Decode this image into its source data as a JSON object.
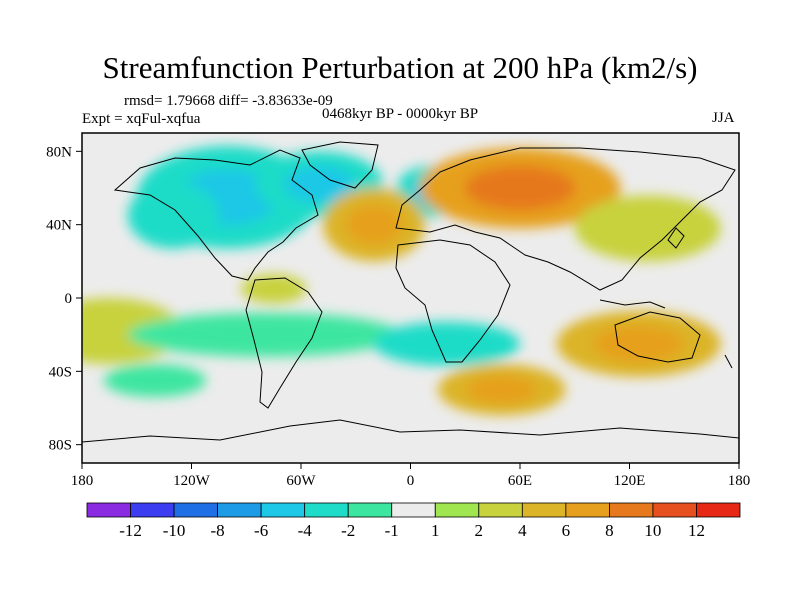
{
  "title": "Streamfunction Perturbation at 200 hPa (km2/s)",
  "stats": "rmsd= 1.79668 diff= -3.83633e-09",
  "experiment": "Expt = xqFul-xqfua",
  "period": "0468kyr BP - 0000kyr BP",
  "season": "JJA",
  "map": {
    "lon_ticks": [
      {
        "lon": -180,
        "label": "180"
      },
      {
        "lon": -120,
        "label": "120W"
      },
      {
        "lon": -60,
        "label": "60W"
      },
      {
        "lon": 0,
        "label": "0"
      },
      {
        "lon": 60,
        "label": "60E"
      },
      {
        "lon": 120,
        "label": "120E"
      },
      {
        "lon": 180,
        "label": "180"
      }
    ],
    "lat_ticks": [
      {
        "lat": 80,
        "label": "80N"
      },
      {
        "lat": 40,
        "label": "40N"
      },
      {
        "lat": 0,
        "label": "0"
      },
      {
        "lat": -40,
        "label": "40S"
      },
      {
        "lat": -80,
        "label": "80S"
      }
    ],
    "anomalies": [
      {
        "lon": -100,
        "lat": 55,
        "rlon": 50,
        "rlat": 28,
        "value": -3.5
      },
      {
        "lon": -130,
        "lat": 45,
        "rlon": 25,
        "rlat": 18,
        "value": -2.5
      },
      {
        "lon": -50,
        "lat": 62,
        "rlon": 35,
        "rlat": 18,
        "value": -3
      },
      {
        "lon": 10,
        "lat": 58,
        "rlon": 18,
        "rlat": 14,
        "value": -4
      },
      {
        "lon": -20,
        "lat": 40,
        "rlon": 28,
        "rlat": 20,
        "value": 4
      },
      {
        "lon": 60,
        "lat": 60,
        "rlon": 55,
        "rlat": 22,
        "value": 6
      },
      {
        "lon": 130,
        "lat": 38,
        "rlon": 40,
        "rlat": 18,
        "value": 2
      },
      {
        "lon": -75,
        "lat": 5,
        "rlon": 18,
        "rlat": 8,
        "value": 2.5
      },
      {
        "lon": -165,
        "lat": -18,
        "rlon": 40,
        "rlat": 18,
        "value": 2.5
      },
      {
        "lon": -80,
        "lat": -20,
        "rlon": 75,
        "rlat": 12,
        "value": -1.5
      },
      {
        "lon": 20,
        "lat": -25,
        "rlon": 40,
        "rlat": 12,
        "value": -2.5
      },
      {
        "lon": 50,
        "lat": -50,
        "rlon": 35,
        "rlat": 14,
        "value": 4
      },
      {
        "lon": 125,
        "lat": -25,
        "rlon": 45,
        "rlat": 18,
        "value": 4
      },
      {
        "lon": -140,
        "lat": -45,
        "rlon": 28,
        "rlat": 9,
        "value": -1.5
      }
    ]
  },
  "colorbar": {
    "colors": [
      "#8a2be2",
      "#3c3cf0",
      "#1e6ee6",
      "#1e9be6",
      "#1ec8e6",
      "#1edcc8",
      "#3ce6a0",
      "#ececec",
      "#a0e650",
      "#c8d23c",
      "#dcb428",
      "#e6a01e",
      "#e6781e",
      "#e6501e",
      "#e62814"
    ],
    "labels": [
      "-12",
      "-10",
      "-8",
      "-6",
      "-4",
      "-2",
      "-1",
      "1",
      "2",
      "4",
      "6",
      "8",
      "10",
      "12"
    ]
  }
}
